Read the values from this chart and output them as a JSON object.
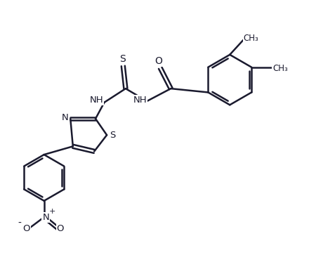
{
  "background_color": "#ffffff",
  "line_color": "#1a1a2e",
  "line_width": 1.8,
  "figsize": [
    4.4,
    3.63
  ],
  "dpi": 100,
  "xlim": [
    0,
    11
  ],
  "ylim": [
    -1,
    9
  ]
}
